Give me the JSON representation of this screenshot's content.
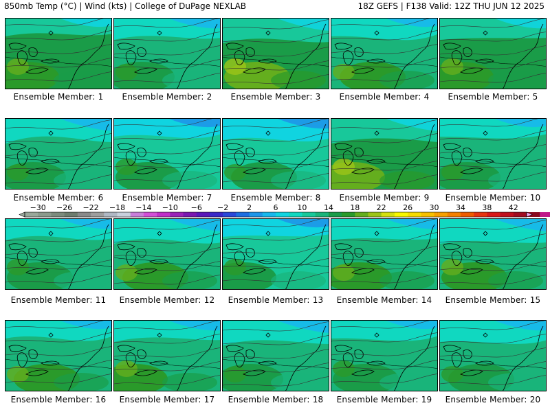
{
  "header": {
    "left": "850mb Temp (°C) | Wind (kts) | College of DuPage NEXLAB",
    "right": "18Z GEFS | F138 Valid: 12Z THU JUN 12 2025"
  },
  "colorbar": {
    "tick_labels": [
      "−30",
      "−26",
      "−22",
      "−18",
      "−14",
      "−10",
      "−6",
      "−2",
      "2",
      "6",
      "10",
      "14",
      "18",
      "22",
      "26",
      "30",
      "34",
      "38",
      "42"
    ],
    "ticks": [
      -30,
      -26,
      -22,
      -18,
      -14,
      -10,
      -6,
      -2,
      2,
      6,
      10,
      14,
      18,
      22,
      26,
      30,
      34,
      38,
      42
    ],
    "min": -32,
    "max": 44,
    "step": 2,
    "colors": [
      "#9aa89a",
      "#8c9a8c",
      "#7d8b7d",
      "#6e7c6e",
      "#8a8a8a",
      "#9e9e9e",
      "#b0b8c4",
      "#c8d0dc",
      "#c97fd9",
      "#d24fd6",
      "#c030c8",
      "#9a22b8",
      "#7a18b0",
      "#5a18b8",
      "#3a2ac8",
      "#2a48d8",
      "#1e6ee0",
      "#1e96e8",
      "#18b8ec",
      "#10d4e0",
      "#10d8c0",
      "#18c89a",
      "#1ab47a",
      "#1a9c48",
      "#2a9a2a",
      "#64ae1e",
      "#9cc418",
      "#d4e010",
      "#f8f800",
      "#f8dc00",
      "#f8c000",
      "#f8a000",
      "#f48000",
      "#ee5c00",
      "#e63410",
      "#d81818",
      "#c0101e",
      "#a00c20",
      "#8a0a1e",
      "#c01888",
      "#d820b0",
      "#e850d0",
      "#f078e0",
      "#f8a8ec"
    ]
  },
  "panels": [
    {
      "caption": "Ensemble Member: 1",
      "mean_temp_c": 14
    },
    {
      "caption": "Ensemble Member: 2",
      "mean_temp_c": 12
    },
    {
      "caption": "Ensemble Member: 3",
      "mean_temp_c": 15
    },
    {
      "caption": "Ensemble Member: 4",
      "mean_temp_c": 13
    },
    {
      "caption": "Ensemble Member: 5",
      "mean_temp_c": 14
    },
    {
      "caption": "Ensemble Member: 6",
      "mean_temp_c": 12
    },
    {
      "caption": "Ensemble Member: 7",
      "mean_temp_c": 11
    },
    {
      "caption": "Ensemble Member: 8",
      "mean_temp_c": 11
    },
    {
      "caption": "Ensemble Member: 9",
      "mean_temp_c": 15
    },
    {
      "caption": "Ensemble Member: 10",
      "mean_temp_c": 12
    },
    {
      "caption": "Ensemble Member: 11",
      "mean_temp_c": 12
    },
    {
      "caption": "Ensemble Member: 12",
      "mean_temp_c": 13
    },
    {
      "caption": "Ensemble Member: 13",
      "mean_temp_c": 11
    },
    {
      "caption": "Ensemble Member: 14",
      "mean_temp_c": 13
    },
    {
      "caption": "Ensemble Member: 15",
      "mean_temp_c": 13
    },
    {
      "caption": "Ensemble Member: 16",
      "mean_temp_c": 13
    },
    {
      "caption": "Ensemble Member: 17",
      "mean_temp_c": 13
    },
    {
      "caption": "Ensemble Member: 18",
      "mean_temp_c": 12
    },
    {
      "caption": "Ensemble Member: 19",
      "mean_temp_c": 12
    },
    {
      "caption": "Ensemble Member: 20",
      "mean_temp_c": 12
    }
  ]
}
